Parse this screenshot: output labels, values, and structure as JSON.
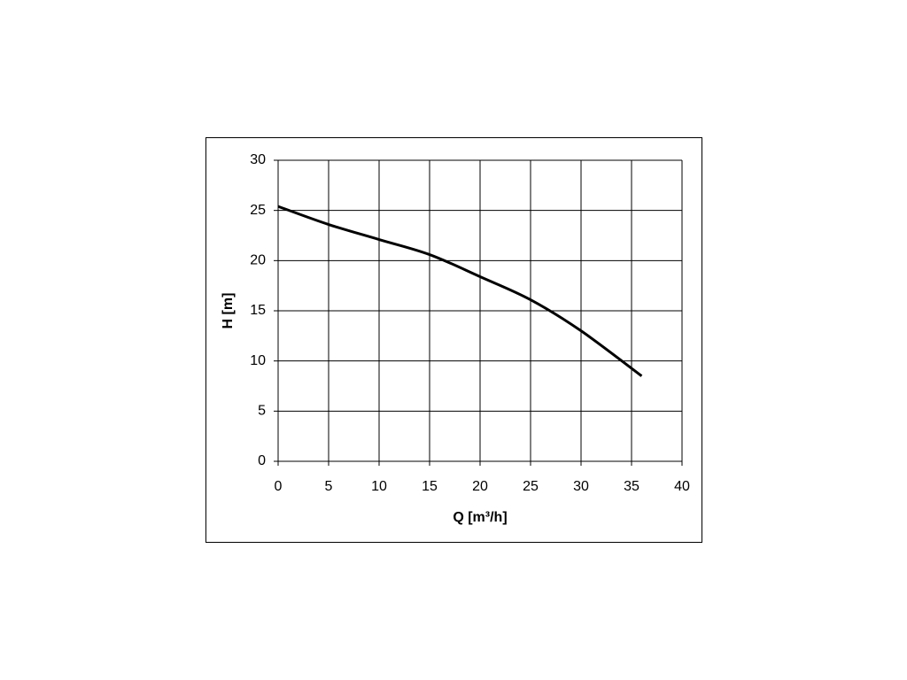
{
  "chart_data": {
    "type": "line",
    "xlabel": "Q [m³/h]",
    "ylabel": "H [m]",
    "x": [
      0,
      5,
      10,
      15,
      20,
      25,
      30,
      36
    ],
    "values": [
      25.4,
      23.6,
      22.1,
      20.6,
      18.4,
      16.1,
      13.0,
      8.5
    ],
    "color": "#000000",
    "xlim": [
      0,
      40
    ],
    "xticks": [
      0,
      5,
      10,
      15,
      20,
      25,
      30,
      35,
      40
    ],
    "ylim": [
      0,
      30
    ],
    "yticks": [
      0,
      5,
      10,
      15,
      20,
      25,
      30
    ],
    "grid": true
  }
}
